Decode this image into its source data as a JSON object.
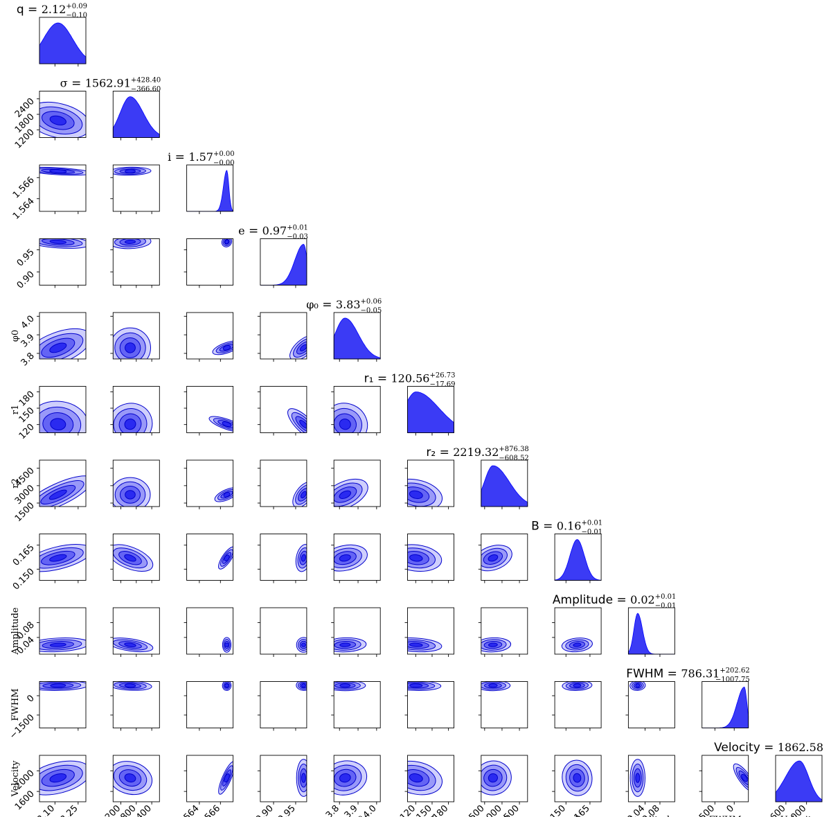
{
  "chart_data": {
    "type": "corner",
    "color": "#0000ff",
    "fill_color": "#3b3bf5",
    "params": [
      {
        "key": "q",
        "label": "q",
        "title_lhs": "q",
        "title_lhs_style": "sans",
        "value": "2.12",
        "plus": "+0.09",
        "minus": "−0.10",
        "ticks": [
          "2.10",
          "2.25"
        ],
        "range": [
          2.0,
          2.3
        ],
        "tick_values": [
          2.1,
          2.25
        ],
        "median": 2.12,
        "sigma": 0.095,
        "skew": 0
      },
      {
        "key": "sigma",
        "label": "",
        "title_lhs": "σ",
        "title_lhs_style": "serif",
        "value": "1562.91",
        "plus": "+428.40",
        "minus": "−366.60",
        "ticks": [
          "1200",
          "1800",
          "2400"
        ],
        "range": [
          900,
          2700
        ],
        "tick_values": [
          1200,
          1800,
          2400
        ],
        "median": 1562.91,
        "sigma": 390,
        "skew": 0.3
      },
      {
        "key": "i",
        "label": "i",
        "title_lhs": "i",
        "title_lhs_style": "serif",
        "value": "1.57",
        "plus": "+0.00",
        "minus": "−0.00",
        "ticks": [
          "1.564",
          "1.566"
        ],
        "range": [
          1.5628,
          1.5672
        ],
        "tick_values": [
          1.564,
          1.566
        ],
        "median": 1.5666,
        "sigma": 0.0002,
        "skew": -0.6
      },
      {
        "key": "e",
        "label": "e",
        "title_lhs": "e",
        "title_lhs_style": "serif",
        "value": "0.97",
        "plus": "+0.01",
        "minus": "−0.03",
        "ticks": [
          "0.90",
          "0.95"
        ],
        "range": [
          0.87,
          0.975
        ],
        "tick_values": [
          0.9,
          0.95
        ],
        "median": 0.968,
        "sigma": 0.008,
        "skew": -1.5
      },
      {
        "key": "phi0",
        "label": "φ0",
        "title_lhs": "φ₀",
        "title_lhs_style": "serif",
        "value": "3.83",
        "plus": "+0.06",
        "minus": "−0.05",
        "ticks": [
          "3.8",
          "3.9",
          "4.0"
        ],
        "range": [
          3.77,
          4.02
        ],
        "tick_values": [
          3.8,
          3.9,
          4.0
        ],
        "median": 3.83,
        "sigma": 0.055,
        "skew": 0.3
      },
      {
        "key": "r1",
        "label": "r1",
        "title_lhs": "r₁",
        "title_lhs_style": "sans",
        "value": "120.56",
        "plus": "+26.73",
        "minus": "−17.69",
        "ticks": [
          "120",
          "150",
          "180"
        ],
        "range": [
          105,
          190
        ],
        "tick_values": [
          120,
          150,
          180
        ],
        "median": 120.56,
        "sigma": 22,
        "skew": 0.9
      },
      {
        "key": "r2",
        "label": "r2",
        "title_lhs": "r₂",
        "title_lhs_style": "sans",
        "value": "2219.32",
        "plus": "+876.38",
        "minus": "−608.52",
        "ticks": [
          "1500",
          "3000",
          "4500"
        ],
        "range": [
          1200,
          5200
        ],
        "tick_values": [
          1500,
          3000,
          4500
        ],
        "median": 2219.32,
        "sigma": 740,
        "skew": 0.9
      },
      {
        "key": "B",
        "label": "B",
        "title_lhs": "B",
        "title_lhs_style": "sans",
        "value": "0.16",
        "plus": "+0.01",
        "minus": "−0.01",
        "ticks": [
          "0.150",
          "0.165"
        ],
        "range": [
          0.143,
          0.172
        ],
        "tick_values": [
          0.15,
          0.165
        ],
        "median": 0.157,
        "sigma": 0.0045,
        "skew": 0
      },
      {
        "key": "amp",
        "label": "Amplitude",
        "title_lhs": "Amplitude",
        "title_lhs_style": "sans",
        "value": "0.02",
        "plus": "+0.01",
        "minus": "−0.01",
        "ticks": [
          "0.04",
          "0.08"
        ],
        "range": [
          -0.005,
          0.12
        ],
        "tick_values": [
          0.04,
          0.08
        ],
        "median": 0.02,
        "sigma": 0.01,
        "skew": 0.3
      },
      {
        "key": "fwhm",
        "label": "FWHM",
        "title_lhs": "FWHM",
        "title_lhs_style": "sans",
        "value": "786.31",
        "plus": "+202.62",
        "minus": "−1007.75",
        "ticks": [
          "−1500",
          "0"
        ],
        "range": [
          -2500,
          1100
        ],
        "tick_values": [
          -1500,
          0
        ],
        "median": 786.31,
        "sigma": 200,
        "skew": -1.8
      },
      {
        "key": "vel",
        "label": "Velocity",
        "title_lhs": "Velocity",
        "title_lhs_style": "sans",
        "value": "1862.58",
        "plus": "",
        "minus": "",
        "ticks": [
          "1600",
          "2000"
        ],
        "range": [
          1400,
          2300
        ],
        "tick_values": [
          1600,
          2000
        ],
        "median": 1862.58,
        "sigma": 180,
        "skew": -0.5
      }
    ],
    "row_labels": [
      "",
      "",
      "",
      "",
      "φ0",
      "r1",
      "r2",
      "",
      "Amplitude",
      "FWHM",
      "Velocity"
    ],
    "correlations": {
      "1,0": -0.35,
      "2,0": -0.4,
      "2,1": 0.1,
      "3,0": -0.3,
      "3,1": 0.1,
      "3,2": 0.75,
      "4,0": 0.55,
      "4,1": 0.05,
      "4,2": -0.6,
      "4,3": -0.4,
      "5,0": -0.1,
      "5,1": 0.3,
      "5,2": 0.5,
      "5,3": 0.3,
      "5,4": -0.3,
      "6,0": 0.8,
      "6,1": 0.0,
      "6,2": -0.55,
      "6,3": -0.3,
      "6,4": 0.55,
      "6,5": -0.3,
      "7,0": 0.5,
      "7,1": -0.55,
      "7,2": -0.2,
      "7,3": -0.1,
      "7,4": 0.3,
      "7,5": -0.2,
      "7,6": 0.4,
      "8,0": 0.2,
      "8,1": -0.4,
      "8,2": 0.0,
      "8,3": 0.0,
      "8,4": 0.1,
      "8,5": -0.2,
      "8,6": 0.1,
      "8,7": 0.2,
      "9,0": 0.1,
      "9,1": -0.2,
      "9,2": -0.1,
      "9,3": -0.1,
      "9,4": 0.0,
      "9,5": -0.1,
      "9,6": 0.0,
      "9,7": 0.1,
      "9,8": 0.1,
      "10,0": 0.4,
      "10,1": -0.3,
      "10,2": -0.1,
      "10,3": 0.0,
      "10,4": 0.2,
      "10,5": -0.3,
      "10,6": 0.2,
      "10,7": 0.1,
      "10,8": 0.0,
      "10,9": 0.2
    }
  }
}
